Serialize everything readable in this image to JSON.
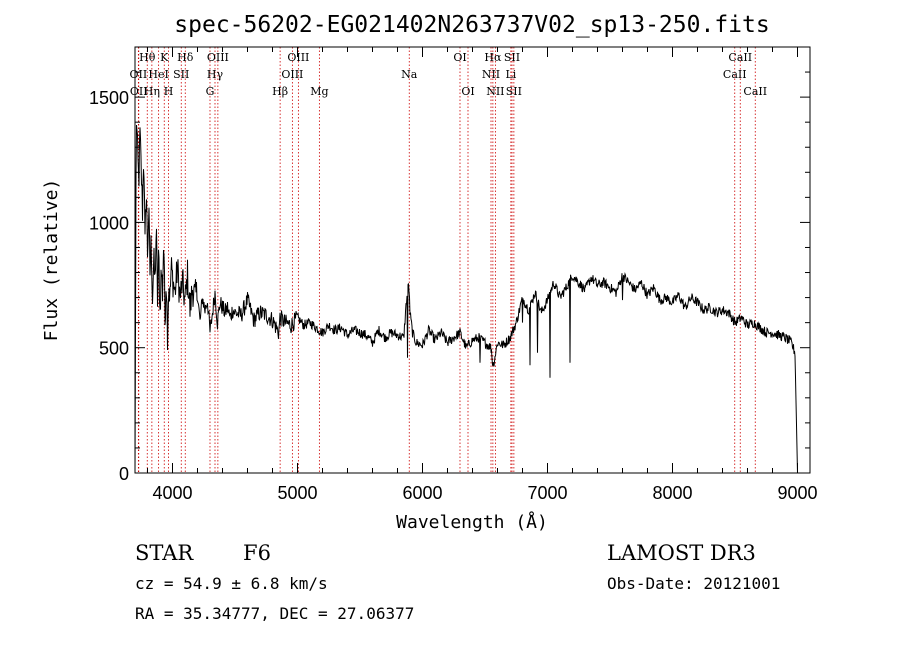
{
  "chart_data": {
    "type": "line",
    "title": "spec-56202-EG021402N263737V02_sp13-250.fits",
    "xlabel": "Wavelength (Å)",
    "ylabel": "Flux (relative)",
    "xlim": [
      3700,
      9100
    ],
    "ylim": [
      0,
      1700
    ],
    "x_ticks": [
      4000,
      5000,
      6000,
      7000,
      8000,
      9000
    ],
    "y_ticks": [
      0,
      500,
      1000,
      1500
    ],
    "grid": false,
    "line_color": "#000000",
    "marker_color": "#cc0000",
    "spectrum": {
      "x": [
        3700,
        3710,
        3720,
        3730,
        3740,
        3750,
        3760,
        3770,
        3780,
        3790,
        3800,
        3810,
        3820,
        3830,
        3840,
        3850,
        3860,
        3870,
        3880,
        3890,
        3900,
        3910,
        3920,
        3930,
        3940,
        3950,
        3960,
        3970,
        3980,
        3990,
        4000,
        4020,
        4040,
        4060,
        4080,
        4100,
        4120,
        4140,
        4160,
        4180,
        4200,
        4220,
        4240,
        4260,
        4280,
        4300,
        4320,
        4340,
        4360,
        4380,
        4400,
        4420,
        4440,
        4460,
        4480,
        4500,
        4550,
        4600,
        4650,
        4700,
        4750,
        4800,
        4850,
        4860,
        4900,
        4950,
        5000,
        5050,
        5100,
        5150,
        5200,
        5250,
        5300,
        5350,
        5400,
        5450,
        5500,
        5550,
        5600,
        5650,
        5700,
        5750,
        5800,
        5850,
        5870,
        5890,
        5900,
        5920,
        5950,
        6000,
        6050,
        6100,
        6150,
        6200,
        6250,
        6300,
        6350,
        6400,
        6450,
        6500,
        6550,
        6563,
        6600,
        6650,
        6700,
        6750,
        6800,
        6850,
        6900,
        6950,
        7000,
        7050,
        7100,
        7150,
        7200,
        7250,
        7300,
        7350,
        7400,
        7450,
        7500,
        7550,
        7600,
        7650,
        7700,
        7750,
        7800,
        7850,
        7900,
        7950,
        8000,
        8050,
        8100,
        8150,
        8200,
        8250,
        8300,
        8350,
        8400,
        8450,
        8500,
        8550,
        8600,
        8650,
        8700,
        8750,
        8800,
        8850,
        8900,
        8950,
        8980,
        9000
      ],
      "y": [
        0,
        1450,
        1280,
        1150,
        1350,
        1200,
        1050,
        1300,
        900,
        1150,
        880,
        1050,
        800,
        930,
        700,
        850,
        760,
        980,
        690,
        880,
        640,
        820,
        720,
        950,
        600,
        800,
        560,
        760,
        700,
        820,
        780,
        720,
        820,
        700,
        760,
        680,
        790,
        650,
        740,
        700,
        720,
        600,
        700,
        650,
        690,
        560,
        640,
        720,
        600,
        680,
        660,
        640,
        660,
        620,
        650,
        640,
        630,
        690,
        610,
        640,
        630,
        610,
        560,
        620,
        600,
        590,
        620,
        590,
        600,
        580,
        560,
        590,
        570,
        580,
        550,
        570,
        560,
        550,
        520,
        570,
        540,
        560,
        550,
        540,
        680,
        760,
        640,
        560,
        520,
        510,
        570,
        530,
        560,
        520,
        540,
        560,
        500,
        530,
        540,
        520,
        500,
        420,
        520,
        510,
        540,
        600,
        700,
        650,
        720,
        640,
        690,
        760,
        700,
        740,
        790,
        760,
        730,
        780,
        750,
        760,
        740,
        720,
        790,
        760,
        730,
        760,
        710,
        740,
        690,
        700,
        680,
        710,
        660,
        700,
        680,
        650,
        660,
        640,
        650,
        640,
        600,
        620,
        590,
        600,
        580,
        560,
        560,
        550,
        540,
        520,
        480,
        0
      ]
    },
    "absorption_features": {
      "x": [
        5880,
        6460,
        6563,
        6800,
        6860,
        6920,
        7020,
        7180,
        7600
      ],
      "y": [
        460,
        440,
        430,
        600,
        430,
        480,
        380,
        440,
        690
      ]
    },
    "line_markers": [
      {
        "label": "OII",
        "x": 3727,
        "row": 2
      },
      {
        "label": "OII",
        "x": 3730,
        "row": 3
      },
      {
        "label": "Hθ",
        "x": 3798,
        "row": 1
      },
      {
        "label": "Hη",
        "x": 3835,
        "row": 3
      },
      {
        "label": "HeI",
        "x": 3889,
        "row": 2
      },
      {
        "label": "K",
        "x": 3934,
        "row": 1
      },
      {
        "label": "H",
        "x": 3968,
        "row": 3
      },
      {
        "label": "SII",
        "x": 4070,
        "row": 2
      },
      {
        "label": "Hδ",
        "x": 4102,
        "row": 1
      },
      {
        "label": "G",
        "x": 4300,
        "row": 3
      },
      {
        "label": "Hγ",
        "x": 4340,
        "row": 2
      },
      {
        "label": "OIII",
        "x": 4363,
        "row": 1
      },
      {
        "label": "Hβ",
        "x": 4861,
        "row": 3
      },
      {
        "label": "OIII",
        "x": 4959,
        "row": 2
      },
      {
        "label": "OIII",
        "x": 5007,
        "row": 1
      },
      {
        "label": "Mg",
        "x": 5175,
        "row": 3
      },
      {
        "label": "Na",
        "x": 5894,
        "row": 2
      },
      {
        "label": "OI",
        "x": 6300,
        "row": 1
      },
      {
        "label": "OI",
        "x": 6364,
        "row": 3
      },
      {
        "label": "NII",
        "x": 6548,
        "row": 2
      },
      {
        "label": "Hα",
        "x": 6563,
        "row": 1
      },
      {
        "label": "NII",
        "x": 6583,
        "row": 3
      },
      {
        "label": "Li",
        "x": 6707,
        "row": 2
      },
      {
        "label": "SII",
        "x": 6716,
        "row": 1
      },
      {
        "label": "SII",
        "x": 6731,
        "row": 3
      },
      {
        "label": "CaII",
        "x": 8498,
        "row": 2
      },
      {
        "label": "CaII",
        "x": 8542,
        "row": 1
      },
      {
        "label": "CaII",
        "x": 8662,
        "row": 3
      }
    ]
  },
  "info": {
    "class_label": "STAR",
    "subclass_label": "F6",
    "survey_label": "LAMOST DR3",
    "cz_text": "cz = 54.9 ± 6.8 km/s",
    "obs_date_text": "Obs-Date: 20121001",
    "coords_text": "RA =  35.34777, DEC =  27.06377"
  }
}
